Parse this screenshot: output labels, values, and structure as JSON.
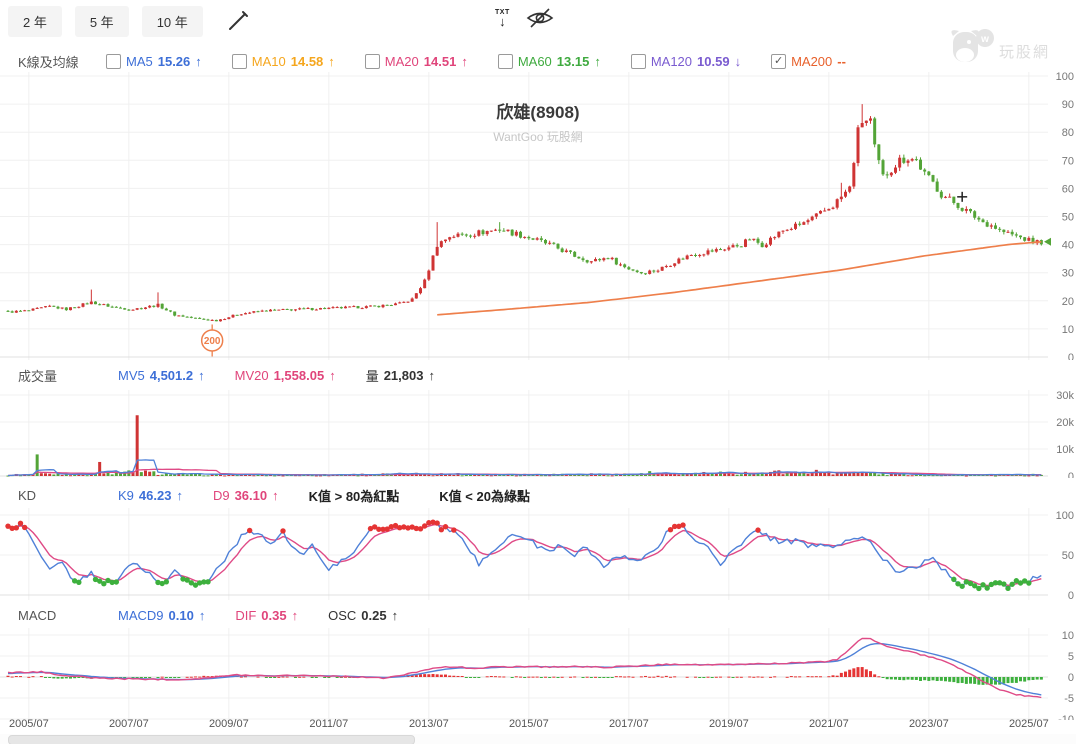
{
  "toolbar": {
    "range_buttons": [
      {
        "label": "2 年"
      },
      {
        "label": "5 年"
      },
      {
        "label": "10 年"
      }
    ],
    "txt_export_label": "TXT",
    "txt_arrow": "↓"
  },
  "legend": {
    "title": "K線及均線",
    "items": [
      {
        "label": "MA5",
        "value": "15.26",
        "dir": "up",
        "color": "#3d6fd7",
        "checked": false
      },
      {
        "label": "MA10",
        "value": "14.58",
        "dir": "up",
        "color": "#f5a61d",
        "checked": false
      },
      {
        "label": "MA20",
        "value": "14.51",
        "dir": "up",
        "color": "#e0457b",
        "checked": false
      },
      {
        "label": "MA60",
        "value": "13.15",
        "dir": "up",
        "color": "#3faa3f",
        "checked": false
      },
      {
        "label": "MA120",
        "value": "10.59",
        "dir": "down",
        "color": "#7a5bd0",
        "checked": false
      },
      {
        "label": "MA200",
        "value": "--",
        "dir": "none",
        "color": "#e8612c",
        "checked": true
      }
    ]
  },
  "chart_title": "欣雄(8908)",
  "chart_subtitle": "WantGoo 玩股網",
  "watermark_text": "玩股網",
  "volume_legend": {
    "title": "成交量",
    "items": [
      {
        "label": "MV5",
        "value": "4,501.2",
        "dir": "up",
        "color": "#3d6fd7"
      },
      {
        "label": "MV20",
        "value": "1,558.05",
        "dir": "up",
        "color": "#e0457b"
      },
      {
        "label": "量",
        "value": "21,803",
        "dir": "up",
        "color": "#333333"
      }
    ]
  },
  "kd_legend": {
    "title": "KD",
    "items": [
      {
        "label": "K9",
        "value": "46.23",
        "dir": "up",
        "color": "#3d6fd7"
      },
      {
        "label": "D9",
        "value": "36.10",
        "dir": "up",
        "color": "#e0457b"
      }
    ],
    "note_red": "K值 > 80為紅點",
    "note_green": "K值 < 20為綠點"
  },
  "macd_legend": {
    "title": "MACD",
    "items": [
      {
        "label": "MACD9",
        "value": "0.10",
        "dir": "up",
        "color": "#3d6fd7"
      },
      {
        "label": "DIF",
        "value": "0.35",
        "dir": "up",
        "color": "#e0457b"
      },
      {
        "label": "OSC",
        "value": "0.25",
        "dir": "up",
        "color": "#333333"
      }
    ]
  },
  "colors": {
    "up": "#cf3434",
    "down": "#53a437",
    "ma200_line": "#ee7f4b",
    "k_line": "#4f81d8",
    "d_line": "#df4a86",
    "dot_red": "#e53434",
    "dot_green": "#3db03d",
    "mv5_line": "#4f81d8",
    "mv20_line": "#df4a86",
    "grid": "#f0f0f0",
    "zero_line": "#e0e0e0",
    "axis_text": "#777777",
    "cursor": "#222222"
  },
  "chart_data": {
    "type": "candlestick",
    "n_points": 249,
    "x_labels": [
      "2005/07",
      "2007/07",
      "2009/07",
      "2011/07",
      "2013/07",
      "2015/07",
      "2017/07",
      "2019/07",
      "2021/07",
      "2023/07",
      "2025/07"
    ],
    "first_label_index": 5,
    "months_per_label": 24,
    "price_pane": {
      "ylim": [
        0,
        100
      ],
      "yticks": [
        [
          0,
          "0"
        ],
        [
          10,
          "10"
        ],
        [
          20,
          "20"
        ],
        [
          30,
          "30"
        ],
        [
          40,
          "40"
        ],
        [
          50,
          "50"
        ],
        [
          60,
          "60"
        ],
        [
          70,
          "70"
        ],
        [
          80,
          "80"
        ],
        [
          90,
          "90"
        ],
        [
          100,
          "100"
        ]
      ],
      "close_anchors": [
        [
          0,
          16
        ],
        [
          5,
          16.5
        ],
        [
          10,
          18
        ],
        [
          14,
          17
        ],
        [
          20,
          19.5
        ],
        [
          26,
          17.5
        ],
        [
          30,
          17
        ],
        [
          36,
          18.5
        ],
        [
          40,
          15
        ],
        [
          46,
          13.5
        ],
        [
          50,
          13
        ],
        [
          56,
          15.5
        ],
        [
          62,
          16.5
        ],
        [
          70,
          17
        ],
        [
          80,
          17.5
        ],
        [
          88,
          18
        ],
        [
          94,
          19
        ],
        [
          97,
          20.5
        ],
        [
          100,
          27
        ],
        [
          103,
          40
        ],
        [
          106,
          43
        ],
        [
          112,
          44
        ],
        [
          118,
          45.5
        ],
        [
          124,
          43
        ],
        [
          130,
          40
        ],
        [
          136,
          36
        ],
        [
          140,
          34
        ],
        [
          144,
          35.5
        ],
        [
          148,
          32
        ],
        [
          152,
          30
        ],
        [
          156,
          31
        ],
        [
          160,
          34
        ],
        [
          164,
          36.5
        ],
        [
          170,
          38
        ],
        [
          176,
          40
        ],
        [
          178,
          42
        ],
        [
          181,
          40
        ],
        [
          186,
          45
        ],
        [
          190,
          47
        ],
        [
          194,
          50
        ],
        [
          198,
          54
        ],
        [
          200,
          57
        ],
        [
          202,
          60
        ],
        [
          203,
          70
        ],
        [
          204,
          80
        ],
        [
          205,
          84
        ],
        [
          207,
          84
        ],
        [
          208,
          74
        ],
        [
          210,
          64
        ],
        [
          212,
          67
        ],
        [
          214,
          70
        ],
        [
          216,
          71
        ],
        [
          218,
          70
        ],
        [
          220,
          65
        ],
        [
          222,
          62
        ],
        [
          224,
          58
        ],
        [
          226,
          56
        ],
        [
          228,
          54
        ],
        [
          230,
          52
        ],
        [
          232,
          50
        ],
        [
          234,
          48
        ],
        [
          236,
          47
        ],
        [
          238,
          45
        ],
        [
          240,
          44
        ],
        [
          242,
          43
        ],
        [
          244,
          42
        ],
        [
          246,
          41
        ],
        [
          248,
          41
        ]
      ],
      "wick_overrides": [
        [
          20,
          24
        ],
        [
          36,
          23
        ],
        [
          103,
          48
        ],
        [
          118,
          48
        ],
        [
          200,
          62
        ],
        [
          205,
          90
        ]
      ],
      "ma200_anchors": [
        [
          103,
          15
        ],
        [
          120,
          17
        ],
        [
          140,
          19.5
        ],
        [
          160,
          23
        ],
        [
          180,
          27
        ],
        [
          200,
          31
        ],
        [
          210,
          33.5
        ],
        [
          220,
          36
        ],
        [
          230,
          38
        ],
        [
          240,
          40
        ],
        [
          248,
          41
        ]
      ],
      "marker": {
        "label": "200",
        "index": 49,
        "price": 13
      },
      "cursor": {
        "index": 229,
        "price": 57
      },
      "last_price_marker": {
        "price": 41
      }
    },
    "volume_pane": {
      "ylim": [
        0,
        30000
      ],
      "yticks": [
        [
          0,
          "0"
        ],
        [
          10000,
          "10k"
        ],
        [
          20000,
          "20k"
        ],
        [
          30000,
          "30k"
        ]
      ],
      "base_anchors": [
        [
          0,
          400
        ],
        [
          10,
          900
        ],
        [
          20,
          700
        ],
        [
          31,
          1500
        ],
        [
          40,
          700
        ],
        [
          55,
          500
        ],
        [
          70,
          400
        ],
        [
          100,
          800
        ],
        [
          120,
          600
        ],
        [
          154,
          700
        ],
        [
          180,
          1200
        ],
        [
          195,
          1600
        ],
        [
          210,
          800
        ],
        [
          230,
          400
        ],
        [
          248,
          500
        ]
      ],
      "spikes": [
        [
          7,
          8000,
          "down"
        ],
        [
          22,
          5200,
          "up"
        ],
        [
          31,
          22500,
          "up"
        ],
        [
          49,
          900,
          "up"
        ],
        [
          154,
          1800,
          "down"
        ],
        [
          183,
          1500,
          "up"
        ],
        [
          185,
          2100,
          "up"
        ],
        [
          187,
          1300,
          "down"
        ],
        [
          189,
          1700,
          "up"
        ],
        [
          191,
          1200,
          "down"
        ],
        [
          193,
          1500,
          "up"
        ],
        [
          196,
          1100,
          "up"
        ],
        [
          205,
          1600,
          "up"
        ],
        [
          207,
          1200,
          "down"
        ]
      ]
    },
    "kd_pane": {
      "ylim": [
        0,
        100
      ],
      "yticks": [
        [
          0,
          "0"
        ],
        [
          50,
          "50"
        ],
        [
          100,
          "100"
        ]
      ],
      "red_dot_threshold": 80,
      "green_dot_threshold": 20,
      "k_anchors": [
        [
          0,
          85
        ],
        [
          3,
          88
        ],
        [
          6,
          70
        ],
        [
          10,
          32
        ],
        [
          13,
          44
        ],
        [
          16,
          15
        ],
        [
          20,
          28
        ],
        [
          22,
          16
        ],
        [
          25,
          14
        ],
        [
          30,
          42
        ],
        [
          33,
          30
        ],
        [
          37,
          12
        ],
        [
          40,
          28
        ],
        [
          44,
          15
        ],
        [
          48,
          18
        ],
        [
          52,
          45
        ],
        [
          57,
          80
        ],
        [
          60,
          76
        ],
        [
          63,
          64
        ],
        [
          66,
          78
        ],
        [
          70,
          50
        ],
        [
          73,
          62
        ],
        [
          77,
          30
        ],
        [
          80,
          45
        ],
        [
          83,
          55
        ],
        [
          87,
          80
        ],
        [
          90,
          85
        ],
        [
          94,
          86
        ],
        [
          98,
          84
        ],
        [
          102,
          88
        ],
        [
          106,
          82
        ],
        [
          110,
          65
        ],
        [
          113,
          38
        ],
        [
          117,
          55
        ],
        [
          121,
          75
        ],
        [
          125,
          68
        ],
        [
          129,
          55
        ],
        [
          133,
          62
        ],
        [
          136,
          50
        ],
        [
          139,
          60
        ],
        [
          143,
          35
        ],
        [
          147,
          50
        ],
        [
          151,
          42
        ],
        [
          155,
          55
        ],
        [
          159,
          84
        ],
        [
          162,
          85
        ],
        [
          165,
          70
        ],
        [
          168,
          62
        ],
        [
          171,
          36
        ],
        [
          174,
          55
        ],
        [
          177,
          70
        ],
        [
          180,
          83
        ],
        [
          183,
          70
        ],
        [
          186,
          66
        ],
        [
          189,
          68
        ],
        [
          192,
          60
        ],
        [
          195,
          66
        ],
        [
          198,
          58
        ],
        [
          201,
          70
        ],
        [
          204,
          72
        ],
        [
          207,
          70
        ],
        [
          210,
          45
        ],
        [
          213,
          30
        ],
        [
          216,
          35
        ],
        [
          219,
          38
        ],
        [
          222,
          45
        ],
        [
          225,
          30
        ],
        [
          228,
          15
        ],
        [
          231,
          12
        ],
        [
          234,
          10
        ],
        [
          237,
          16
        ],
        [
          240,
          8
        ],
        [
          242,
          20
        ],
        [
          244,
          15
        ],
        [
          246,
          20
        ],
        [
          248,
          24
        ]
      ]
    },
    "macd_pane": {
      "ylim": [
        -10,
        10
      ],
      "yticks": [
        [
          -10,
          "-10"
        ],
        [
          -5,
          "-5"
        ],
        [
          0,
          "0"
        ],
        [
          5,
          "5"
        ],
        [
          10,
          "10"
        ]
      ],
      "dif_anchors": [
        [
          0,
          1.0
        ],
        [
          8,
          1.2
        ],
        [
          14,
          0.3
        ],
        [
          22,
          -0.3
        ],
        [
          32,
          -0.5
        ],
        [
          42,
          -0.6
        ],
        [
          50,
          0
        ],
        [
          55,
          0.5
        ],
        [
          62,
          0.3
        ],
        [
          70,
          0.4
        ],
        [
          78,
          0.2
        ],
        [
          85,
          0
        ],
        [
          90,
          -0.3
        ],
        [
          95,
          0.5
        ],
        [
          98,
          1.2
        ],
        [
          102,
          2.2
        ],
        [
          107,
          2.4
        ],
        [
          112,
          2.1
        ],
        [
          118,
          2.4
        ],
        [
          124,
          2.5
        ],
        [
          130,
          2.4
        ],
        [
          136,
          2.5
        ],
        [
          142,
          2.3
        ],
        [
          148,
          2.5
        ],
        [
          154,
          2.8
        ],
        [
          160,
          3.1
        ],
        [
          166,
          2.9
        ],
        [
          172,
          2.9
        ],
        [
          178,
          3.1
        ],
        [
          184,
          3.2
        ],
        [
          190,
          3.4
        ],
        [
          196,
          3.6
        ],
        [
          199,
          4.2
        ],
        [
          203,
          7.5
        ],
        [
          205,
          9.3
        ],
        [
          207,
          9.0
        ],
        [
          210,
          7.6
        ],
        [
          214,
          6.6
        ],
        [
          218,
          5.6
        ],
        [
          222,
          4.6
        ],
        [
          226,
          3.2
        ],
        [
          230,
          1.2
        ],
        [
          234,
          -1.0
        ],
        [
          238,
          -3.0
        ],
        [
          242,
          -4.2
        ],
        [
          245,
          -4.6
        ],
        [
          248,
          -4.8
        ]
      ]
    }
  }
}
